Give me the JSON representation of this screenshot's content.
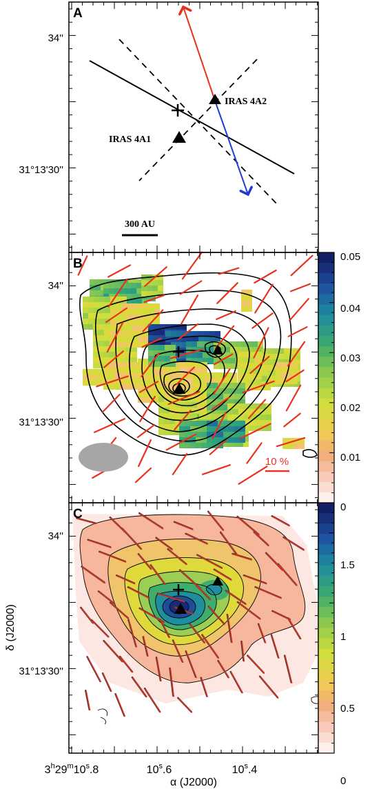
{
  "figure": {
    "panels": [
      {
        "label": "A",
        "y_ticks": [
          "34''",
          "31°13'30''"
        ]
      },
      {
        "label": "B",
        "y_ticks": [
          "34''",
          "31°13'30''"
        ]
      },
      {
        "label": "C",
        "y_ticks": [
          "34''",
          "31°13'30''"
        ]
      }
    ],
    "ylabel": "δ (J2000)",
    "xlabel": "α (J2000)",
    "x_ticks": [
      "3h29m10s.8",
      "10s.6",
      "10s.4"
    ],
    "x_tick_parts": [
      {
        "a": "3",
        "sa": "h",
        "b": "29",
        "sb": "m",
        "c": "10",
        "sc": "s",
        "d": ".8"
      },
      {
        "c": "10",
        "sc": "s",
        "d": ".6"
      },
      {
        "c": "10",
        "sc": "s",
        "d": ".4"
      }
    ],
    "sources": [
      "IRAS 4A1",
      "IRAS 4A2"
    ],
    "scale_bar": "300 AU",
    "pol_scale": "10 %",
    "colorbar_b": {
      "ticks": [
        "0.05",
        "0.04",
        "0.03",
        "0.02",
        "0.01",
        "0"
      ],
      "min": 0,
      "max": 0.05
    },
    "colorbar_c": {
      "ticks": [
        "1.5",
        "1",
        "0.5",
        "0"
      ],
      "min": 0,
      "max": 1.75
    },
    "colors": {
      "red_arrow": "#e8321e",
      "blue_arrow": "#1f3ad6",
      "vector": "#e8321e",
      "contour": "#000000",
      "beam": "#a6a6a6"
    }
  }
}
